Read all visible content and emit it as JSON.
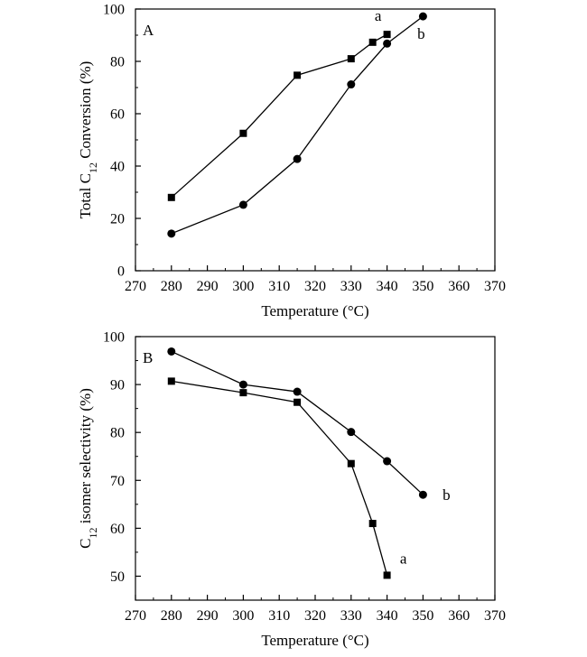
{
  "chart_data": [
    {
      "type": "line",
      "panel_label": "A",
      "xlabel": "Temperature (°C)",
      "ylabel_parts": [
        "Total C",
        "12",
        " Conversion (%)"
      ],
      "xlim": [
        270,
        370
      ],
      "ylim": [
        0,
        100
      ],
      "xticks": [
        270,
        280,
        290,
        300,
        310,
        320,
        330,
        340,
        350,
        360,
        370
      ],
      "yticks": [
        0,
        20,
        40,
        60,
        80,
        100
      ],
      "grid": false,
      "series": [
        {
          "name": "a",
          "marker": "square",
          "x": [
            280,
            300,
            315,
            330,
            336,
            340
          ],
          "y": [
            28.0,
            52.5,
            74.7,
            81.0,
            87.3,
            90.3
          ]
        },
        {
          "name": "b",
          "marker": "circle",
          "x": [
            280,
            300,
            315,
            330,
            340,
            350
          ],
          "y": [
            14.2,
            25.2,
            42.7,
            71.2,
            86.8,
            97.2
          ]
        }
      ]
    },
    {
      "type": "line",
      "panel_label": "B",
      "xlabel": "Temperature (°C)",
      "ylabel_parts": [
        "C",
        "12",
        " isomer selectivity (%)"
      ],
      "xlim": [
        270,
        370
      ],
      "ylim": [
        45,
        100
      ],
      "xticks": [
        270,
        280,
        290,
        300,
        310,
        320,
        330,
        340,
        350,
        360,
        370
      ],
      "yticks": [
        50,
        60,
        70,
        80,
        90,
        100
      ],
      "grid": false,
      "series": [
        {
          "name": "a",
          "marker": "square",
          "x": [
            280,
            300,
            315,
            330,
            336,
            340
          ],
          "y": [
            90.7,
            88.3,
            86.3,
            73.5,
            61.0,
            50.2
          ]
        },
        {
          "name": "b",
          "marker": "circle",
          "x": [
            280,
            300,
            315,
            330,
            340,
            350
          ],
          "y": [
            96.9,
            90.0,
            88.5,
            80.1,
            74.0,
            67.0
          ]
        }
      ]
    }
  ]
}
